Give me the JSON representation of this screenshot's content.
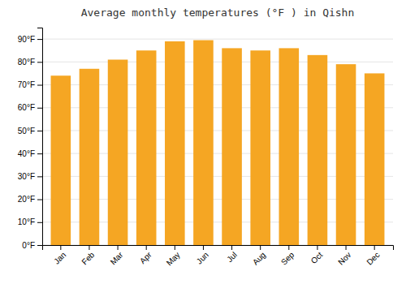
{
  "chart_data": {
    "type": "bar",
    "title": "Average monthly temperatures (°F ) in Qishn",
    "categories": [
      "Jan",
      "Feb",
      "Mar",
      "Apr",
      "May",
      "Jun",
      "Jul",
      "Aug",
      "Sep",
      "Oct",
      "Nov",
      "Dec"
    ],
    "values": [
      74,
      77,
      81,
      85,
      89,
      89.5,
      86,
      85,
      86,
      83,
      79,
      75
    ],
    "color": "#F5A623",
    "ylim": [
      0,
      95
    ],
    "yticks": [
      {
        "value": 0,
        "label": "0°F"
      },
      {
        "value": 10,
        "label": "10°F"
      },
      {
        "value": 20,
        "label": "20°F"
      },
      {
        "value": 30,
        "label": "30°F"
      },
      {
        "value": 40,
        "label": "40°F"
      },
      {
        "value": 50,
        "label": "50°F"
      },
      {
        "value": 60,
        "label": "60°F"
      },
      {
        "value": 70,
        "label": "70°F"
      },
      {
        "value": 80,
        "label": "80°F"
      },
      {
        "value": 90,
        "label": "90°F"
      }
    ],
    "grid": true
  }
}
